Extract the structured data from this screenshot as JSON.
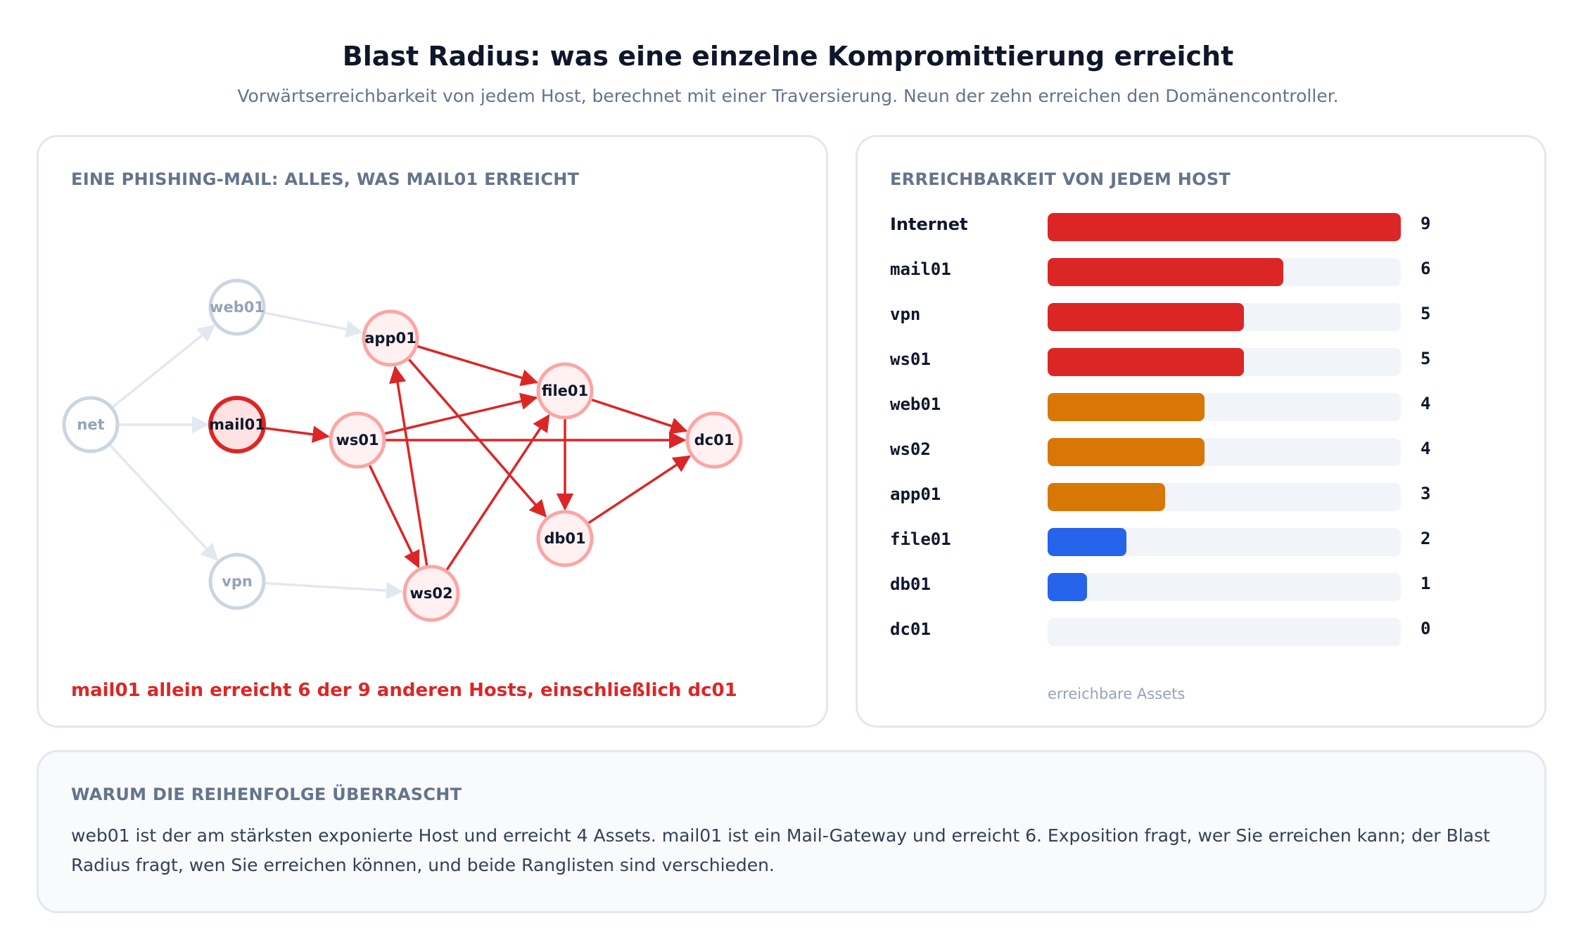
{
  "header": {
    "title": "Blast Radius: was eine einzelne Kompromittierung erreicht",
    "subtitle": "Vorwärtserreichbarkeit von jedem Host, berechnet mit einer Traversierung. Neun der zehn erreichen den Domänencontroller."
  },
  "graph_panel": {
    "heading": "EINE PHISHING-MAIL: ALLES, WAS MAIL01 ERREICHT",
    "caption": "mail01 allein erreicht 6 der 9 anderen Hosts, einschließlich dc01",
    "colors": {
      "source": "#dc2626",
      "reached": "#fca5a5",
      "unreached": "#cbd5e1",
      "edge_active": "#dc2626",
      "edge_inactive": "#e2e8f0"
    },
    "nodes": [
      {
        "id": "net",
        "label": "net",
        "state": "unreached"
      },
      {
        "id": "web01",
        "label": "web01",
        "state": "unreached"
      },
      {
        "id": "mail01",
        "label": "mail01",
        "state": "source"
      },
      {
        "id": "vpn",
        "label": "vpn",
        "state": "unreached"
      },
      {
        "id": "app01",
        "label": "app01",
        "state": "reached"
      },
      {
        "id": "ws01",
        "label": "ws01",
        "state": "reached"
      },
      {
        "id": "ws02",
        "label": "ws02",
        "state": "reached"
      },
      {
        "id": "file01",
        "label": "file01",
        "state": "reached"
      },
      {
        "id": "db01",
        "label": "db01",
        "state": "reached"
      },
      {
        "id": "dc01",
        "label": "dc01",
        "state": "reached"
      }
    ],
    "edges": [
      {
        "from": "net",
        "to": "web01",
        "active": false
      },
      {
        "from": "net",
        "to": "mail01",
        "active": false
      },
      {
        "from": "net",
        "to": "vpn",
        "active": false
      },
      {
        "from": "web01",
        "to": "app01",
        "active": false
      },
      {
        "from": "vpn",
        "to": "ws02",
        "active": false
      },
      {
        "from": "mail01",
        "to": "ws01",
        "active": true
      },
      {
        "from": "ws01",
        "to": "file01",
        "active": true
      },
      {
        "from": "ws01",
        "to": "dc01",
        "active": true
      },
      {
        "from": "ws01",
        "to": "ws02",
        "active": true
      },
      {
        "from": "ws02",
        "to": "app01",
        "active": true
      },
      {
        "from": "ws02",
        "to": "file01",
        "active": true
      },
      {
        "from": "app01",
        "to": "file01",
        "active": true
      },
      {
        "from": "app01",
        "to": "db01",
        "active": true
      },
      {
        "from": "file01",
        "to": "db01",
        "active": true
      },
      {
        "from": "file01",
        "to": "dc01",
        "active": true
      },
      {
        "from": "db01",
        "to": "dc01",
        "active": true
      }
    ]
  },
  "bars_panel": {
    "heading": "ERREICHBARKEIT VON JEDEM HOST",
    "axis_label": "erreichbare Assets",
    "max": 9,
    "rows": [
      {
        "label": "Internet",
        "value": 9,
        "value_text": "9",
        "color": "#dc2626"
      },
      {
        "label": "mail01",
        "value": 6,
        "value_text": "6",
        "color": "#dc2626"
      },
      {
        "label": "vpn",
        "value": 5,
        "value_text": "5",
        "color": "#dc2626"
      },
      {
        "label": "ws01",
        "value": 5,
        "value_text": "5",
        "color": "#dc2626"
      },
      {
        "label": "web01",
        "value": 4,
        "value_text": "4",
        "color": "#d97706"
      },
      {
        "label": "ws02",
        "value": 4,
        "value_text": "4",
        "color": "#d97706"
      },
      {
        "label": "app01",
        "value": 3,
        "value_text": "3",
        "color": "#d97706"
      },
      {
        "label": "file01",
        "value": 2,
        "value_text": "2",
        "color": "#2563eb"
      },
      {
        "label": "db01",
        "value": 1,
        "value_text": "1",
        "color": "#2563eb"
      },
      {
        "label": "dc01",
        "value": 0,
        "value_text": "0",
        "color": "#2563eb"
      }
    ]
  },
  "note_panel": {
    "heading": "WARUM DIE REIHENFOLGE ÜBERRASCHT",
    "text": "web01 ist der am stärksten exponierte Host und erreicht 4 Assets. mail01 ist ein Mail-Gateway und erreicht 6. Exposition fragt, wer Sie erreichen kann; der Blast Radius fragt, wen Sie erreichen können, und beide Ranglisten sind verschieden."
  }
}
